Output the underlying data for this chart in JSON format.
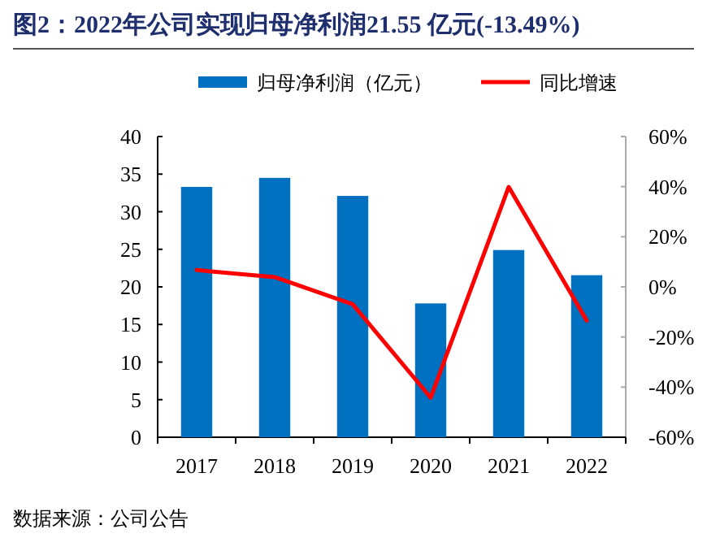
{
  "chart_data": {
    "type": "bar",
    "title": "图2：2022年公司实现归母净利润21.55 亿元(-13.49%)",
    "categories": [
      "2017",
      "2018",
      "2019",
      "2020",
      "2021",
      "2022"
    ],
    "series": [
      {
        "name": "归母净利润（亿元）",
        "color": "#0070c0",
        "values": [
          33.3,
          34.5,
          32.1,
          17.8,
          24.9,
          21.55
        ]
      },
      {
        "name": "同比增速",
        "color": "#ff0000",
        "type": "line",
        "axis": "y2",
        "values": [
          6.7,
          3.9,
          -6.9,
          -44.2,
          39.9,
          -13.49
        ]
      }
    ],
    "ylim": [
      0,
      40
    ],
    "yticks": [
      0,
      5,
      10,
      15,
      20,
      25,
      30,
      35,
      40
    ],
    "y2lim": [
      -60,
      60
    ],
    "y2ticks": [
      {
        "value": -60,
        "label": "-60%"
      },
      {
        "value": -40,
        "label": "-40%"
      },
      {
        "value": -20,
        "label": "-20%"
      },
      {
        "value": 0,
        "label": "0%"
      },
      {
        "value": 20,
        "label": "20%"
      },
      {
        "value": 40,
        "label": "40%"
      },
      {
        "value": 60,
        "label": "60%"
      }
    ],
    "legend": "top",
    "annotations": [
      "数据来源：公司公告"
    ]
  }
}
